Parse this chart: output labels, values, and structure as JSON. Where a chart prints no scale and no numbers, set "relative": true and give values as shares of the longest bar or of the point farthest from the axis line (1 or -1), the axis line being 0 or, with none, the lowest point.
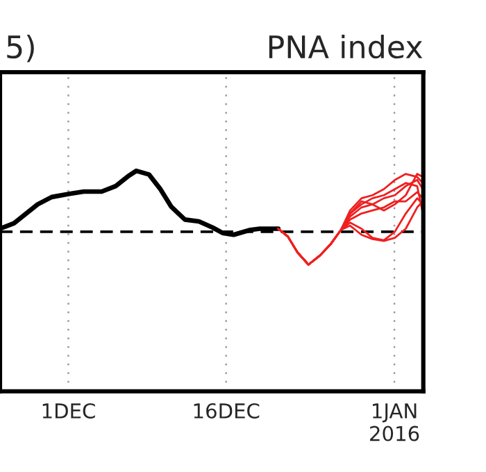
{
  "chart_data": {
    "type": "line",
    "title": "PNA index",
    "annotations": [
      "5)"
    ],
    "relative": true,
    "tick_labels": "x",
    "grid": "x",
    "xlim": [
      "2015-11-24T12:00",
      "2016-01-03T18:00"
    ],
    "xticks": [
      {
        "value": "2015-12-01",
        "label": "1DEC"
      },
      {
        "value": "2015-12-16",
        "label": "16DEC"
      },
      {
        "value": "2016-01-01",
        "label": "1JAN\n2016"
      }
    ],
    "ref_lines": [
      {
        "axis": "y",
        "value": 0,
        "color": "#000000",
        "line_style": "dashed"
      }
    ],
    "series": [
      {
        "color": "#000000",
        "x": [
          "2015-11-24T12:00",
          "2015-11-25T20:00",
          "2015-11-28T02:00",
          "2015-11-29T10:00",
          "2015-12-01",
          "2015-12-02T11:00",
          "2015-12-04T04:00",
          "2015-12-05T12:00",
          "2015-12-06T16:00",
          "2015-12-07T11:00",
          "2015-12-08T16:00",
          "2015-12-09T17:00",
          "2015-12-10T19:00",
          "2015-12-12T02:00",
          "2015-12-13T10:00",
          "2015-12-14T17:00",
          "2015-12-15T16:00",
          "2015-12-16T17:00",
          "2015-12-18T07:00",
          "2015-12-19T05:00",
          "2015-12-20T23:00"
        ],
        "values": [
          0.05,
          0.14,
          0.45,
          0.57,
          0.62,
          0.66,
          0.66,
          0.75,
          0.91,
          1.0,
          0.94,
          0.71,
          0.41,
          0.2,
          0.17,
          0.07,
          -0.02,
          -0.05,
          0.03,
          0.05,
          0.05
        ]
      },
      {
        "color": "#ee2020",
        "x": [
          "2015-12-20T23:00",
          "2015-12-21T21:00",
          "2015-12-22T19:00",
          "2015-12-23T20:00",
          "2015-12-24T22:00",
          "2015-12-25T23:00",
          "2015-12-26T22:00",
          "2015-12-27T19:00",
          "2015-12-28T21:00",
          "2015-12-29T22:00",
          "2015-12-31",
          "2016-01-01T01:00",
          "2016-01-02T02:00",
          "2016-01-03T04:00",
          "2016-01-03T17:00"
        ],
        "values": [
          0.05,
          -0.08,
          -0.34,
          -0.54,
          -0.39,
          -0.2,
          0.03,
          0.35,
          0.55,
          0.6,
          0.7,
          0.85,
          0.95,
          0.9,
          0.8
        ]
      },
      {
        "color": "#ee2020",
        "x": [
          "2015-12-20T23:00",
          "2015-12-21T21:00",
          "2015-12-22T19:00",
          "2015-12-23T20:00",
          "2015-12-24T22:00",
          "2015-12-25T23:00",
          "2015-12-26T22:00",
          "2015-12-27T19:00",
          "2015-12-28T21:00",
          "2015-12-29T22:00",
          "2015-12-31",
          "2016-01-01T01:00",
          "2016-01-02T02:00",
          "2016-01-03T04:00",
          "2016-01-03T17:00"
        ],
        "values": [
          0.05,
          -0.08,
          -0.34,
          -0.54,
          -0.39,
          -0.2,
          0.03,
          0.3,
          0.5,
          0.45,
          0.55,
          0.6,
          0.75,
          0.85,
          0.7
        ]
      },
      {
        "color": "#ee2020",
        "x": [
          "2015-12-20T23:00",
          "2015-12-21T21:00",
          "2015-12-22T19:00",
          "2015-12-23T20:00",
          "2015-12-24T22:00",
          "2015-12-25T23:00",
          "2015-12-26T22:00",
          "2015-12-27T19:00",
          "2015-12-28T21:00",
          "2015-12-29T22:00",
          "2015-12-31",
          "2016-01-01T01:00",
          "2016-01-02T02:00",
          "2016-01-03T04:00",
          "2016-01-03T17:00"
        ],
        "values": [
          0.05,
          -0.08,
          -0.34,
          -0.54,
          -0.39,
          -0.2,
          0.03,
          0.25,
          0.4,
          0.45,
          0.35,
          0.45,
          0.6,
          0.95,
          0.9
        ]
      },
      {
        "color": "#ee2020",
        "x": [
          "2015-12-20T23:00",
          "2015-12-21T21:00",
          "2015-12-22T19:00",
          "2015-12-23T20:00",
          "2015-12-24T22:00",
          "2015-12-25T23:00",
          "2015-12-26T22:00",
          "2015-12-27T19:00",
          "2015-12-28T21:00",
          "2015-12-29T22:00",
          "2015-12-31",
          "2016-01-01T01:00",
          "2016-01-02T02:00",
          "2016-01-03T04:00",
          "2016-01-03T17:00"
        ],
        "values": [
          0.05,
          -0.08,
          -0.34,
          -0.54,
          -0.39,
          -0.2,
          0.03,
          0.2,
          0.3,
          0.35,
          0.4,
          0.5,
          0.5,
          0.65,
          0.55
        ]
      },
      {
        "color": "#ee2020",
        "x": [
          "2015-12-20T23:00",
          "2015-12-21T21:00",
          "2015-12-22T19:00",
          "2015-12-23T20:00",
          "2015-12-24T22:00",
          "2015-12-25T23:00",
          "2015-12-26T22:00",
          "2015-12-27T19:00",
          "2015-12-28T21:00",
          "2015-12-29T22:00",
          "2015-12-31",
          "2016-01-01T01:00",
          "2016-01-02T02:00",
          "2016-01-03T04:00",
          "2016-01-03T17:00"
        ],
        "values": [
          0.05,
          -0.08,
          -0.34,
          -0.54,
          -0.39,
          -0.2,
          0.03,
          0.1,
          -0.05,
          -0.12,
          -0.15,
          -0.1,
          0.05,
          0.4,
          0.5
        ]
      },
      {
        "color": "#ee2020",
        "x": [
          "2015-12-20T23:00",
          "2015-12-21T21:00",
          "2015-12-22T19:00",
          "2015-12-23T20:00",
          "2015-12-24T22:00",
          "2015-12-25T23:00",
          "2015-12-26T22:00",
          "2015-12-27T19:00",
          "2015-12-28T21:00",
          "2015-12-29T22:00",
          "2015-12-31",
          "2016-01-01T01:00",
          "2016-01-02T02:00",
          "2016-01-03T04:00",
          "2016-01-03T17:00"
        ],
        "values": [
          0.05,
          -0.08,
          -0.34,
          -0.54,
          -0.39,
          -0.2,
          0.03,
          0.15,
          0.05,
          -0.1,
          -0.14,
          0.0,
          0.3,
          0.55,
          0.45
        ]
      },
      {
        "color": "#ee2020",
        "x": [
          "2015-12-20T23:00",
          "2015-12-21T21:00",
          "2015-12-22T19:00",
          "2015-12-23T20:00",
          "2015-12-24T22:00",
          "2015-12-25T23:00",
          "2015-12-26T22:00",
          "2015-12-27T19:00",
          "2015-12-28T21:00",
          "2015-12-29T22:00",
          "2015-12-31",
          "2016-01-01T01:00",
          "2016-01-02T02:00",
          "2016-01-03T04:00",
          "2016-01-03T17:00"
        ],
        "values": [
          0.05,
          -0.08,
          -0.34,
          -0.54,
          -0.39,
          -0.2,
          0.03,
          0.3,
          0.45,
          0.55,
          0.6,
          0.7,
          0.8,
          0.75,
          0.3
        ]
      }
    ]
  }
}
